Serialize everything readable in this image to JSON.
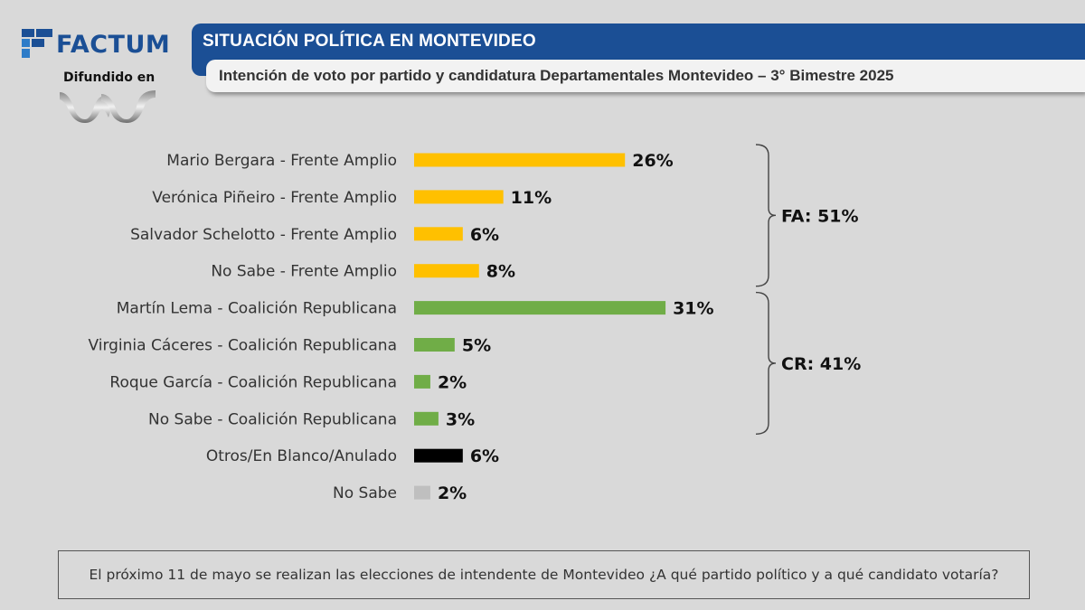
{
  "brand": {
    "name": "FACTUM",
    "disclaimer": "Difundido en"
  },
  "header": {
    "title": "SITUACIÓN POLÍTICA EN MONTEVIDEO",
    "subtitle": "Intención de voto por partido y candidatura Departamentales Montevideo – 3° Bimestre 2025"
  },
  "colors": {
    "fa": "#ffc000",
    "cr": "#70ad47",
    "otros": "#000000",
    "nosabe": "#bfbfbf",
    "header": "#1b4f95"
  },
  "chart_data": {
    "type": "bar",
    "orientation": "horizontal",
    "categories": [
      "Mario Bergara - Frente Amplio",
      "Verónica Piñeiro - Frente Amplio",
      "Salvador Schelotto - Frente Amplio",
      "No Sabe - Frente Amplio",
      "Martín Lema - Coalición Republicana",
      "Virginia Cáceres - Coalición Republicana",
      "Roque García - Coalición Republicana",
      "No Sabe - Coalición Republicana",
      "Otros/En Blanco/Anulado",
      "No Sabe"
    ],
    "values": [
      26,
      11,
      6,
      8,
      31,
      5,
      2,
      3,
      6,
      2
    ],
    "value_labels": [
      "26%",
      "11%",
      "6%",
      "8%",
      "31%",
      "5%",
      "2%",
      "3%",
      "6%",
      "2%"
    ],
    "bar_colors": [
      "#ffc000",
      "#ffc000",
      "#ffc000",
      "#ffc000",
      "#70ad47",
      "#70ad47",
      "#70ad47",
      "#70ad47",
      "#000000",
      "#bfbfbf"
    ],
    "groups": [
      {
        "label": "FA: 51%",
        "rows": [
          0,
          3
        ]
      },
      {
        "label": "CR: 41%",
        "rows": [
          4,
          7
        ]
      }
    ],
    "xlim": [
      0,
      31
    ],
    "grid": false,
    "legend": "none"
  },
  "footer": {
    "question": "El próximo 11 de mayo se realizan las elecciones de intendente de Montevideo ¿A qué partido político y a qué candidato votaría?"
  }
}
